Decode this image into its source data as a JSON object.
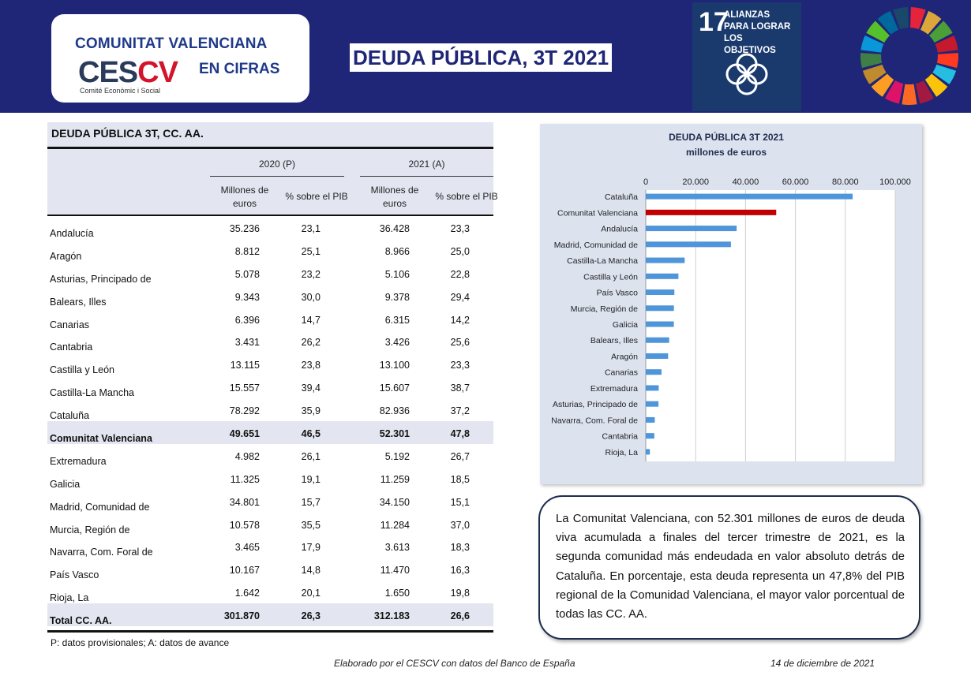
{
  "header": {
    "brand_line1": "COMUNITAT VALENCIANA",
    "brand_line2": "EN CIFRAS",
    "logo_ces": "CES",
    "logo_cv": "CV",
    "logo_subtitle": "Comité Econòmic i Social",
    "title": "DEUDA PÚBLICA, 3T 2021",
    "sdg_number": "17",
    "sdg_text": "ALIANZAS PARA LOGRAR LOS OBJETIVOS",
    "colors": {
      "banner": "#1f2677",
      "logo_red": "#d3142b"
    }
  },
  "table": {
    "title": "DEUDA PÚBLICA  3T, CC. AA.",
    "years": [
      "2020 (P)",
      "2021 (A)"
    ],
    "col_headers": [
      "Millones de euros",
      "% sobre el PIB",
      "Millones de euros",
      "% sobre el PIB"
    ],
    "rows": [
      {
        "name": "Andalucía",
        "v": [
          "35.236",
          "23,1",
          "36.428",
          "23,3"
        ]
      },
      {
        "name": "Aragón",
        "v": [
          "8.812",
          "25,1",
          "8.966",
          "25,0"
        ]
      },
      {
        "name": "Asturias, Principado de",
        "v": [
          "5.078",
          "23,2",
          "5.106",
          "22,8"
        ]
      },
      {
        "name": "Balears, Illes",
        "v": [
          "9.343",
          "30,0",
          "9.378",
          "29,4"
        ]
      },
      {
        "name": "Canarias",
        "v": [
          "6.396",
          "14,7",
          "6.315",
          "14,2"
        ]
      },
      {
        "name": "Cantabria",
        "v": [
          "3.431",
          "26,2",
          "3.426",
          "25,6"
        ]
      },
      {
        "name": "Castilla y León",
        "v": [
          "13.115",
          "23,8",
          "13.100",
          "23,3"
        ]
      },
      {
        "name": "Castilla-La Mancha",
        "v": [
          "15.557",
          "39,4",
          "15.607",
          "38,7"
        ]
      },
      {
        "name": "Cataluña",
        "v": [
          "78.292",
          "35,9",
          "82.936",
          "37,2"
        ]
      },
      {
        "name": "Comunitat Valenciana",
        "v": [
          "49.651",
          "46,5",
          "52.301",
          "47,8"
        ],
        "highlight": true
      },
      {
        "name": "Extremadura",
        "v": [
          "4.982",
          "26,1",
          "5.192",
          "26,7"
        ]
      },
      {
        "name": "Galicia",
        "v": [
          "11.325",
          "19,1",
          "11.259",
          "18,5"
        ]
      },
      {
        "name": "Madrid, Comunidad de",
        "v": [
          "34.801",
          "15,7",
          "34.150",
          "15,1"
        ]
      },
      {
        "name": "Murcia, Región de",
        "v": [
          "10.578",
          "35,5",
          "11.284",
          "37,0"
        ]
      },
      {
        "name": "Navarra, Com. Foral de",
        "v": [
          "3.465",
          "17,9",
          "3.613",
          "18,3"
        ]
      },
      {
        "name": "País Vasco",
        "v": [
          "10.167",
          "14,8",
          "11.470",
          "16,3"
        ]
      },
      {
        "name": "Rioja, La",
        "v": [
          "1.642",
          "20,1",
          "1.650",
          "19,8"
        ]
      },
      {
        "name": "Total CC. AA.",
        "v": [
          "301.870",
          "26,3",
          "312.183",
          "26,6"
        ],
        "highlight": true
      }
    ],
    "footnote": "P: datos provisionales; A: datos de avance"
  },
  "chart_data": {
    "type": "bar",
    "orientation": "horizontal",
    "title": "DEUDA PÚBLICA 3T 2021",
    "subtitle": "millones de euros",
    "categories": [
      "Cataluña",
      "Comunitat Valenciana",
      "Andalucía",
      "Madrid, Comunidad de",
      "Castilla-La Mancha",
      "Castilla y León",
      "País Vasco",
      "Murcia, Región de",
      "Galicia",
      "Balears, Illes",
      "Aragón",
      "Canarias",
      "Extremadura",
      "Asturias, Principado de",
      "Navarra, Com. Foral de",
      "Cantabria",
      "Rioja, La"
    ],
    "values": [
      82936,
      52301,
      36428,
      34150,
      15607,
      13100,
      11470,
      11284,
      11259,
      9378,
      8966,
      6315,
      5192,
      5106,
      3613,
      3426,
      1650
    ],
    "highlight_index": 1,
    "xlim": [
      0,
      100000
    ],
    "ticks": [
      0,
      20000,
      40000,
      60000,
      80000,
      100000
    ],
    "tick_labels": [
      "0",
      "20.000",
      "40.000",
      "60.000",
      "80.000",
      "100.000"
    ],
    "axis_position": "top",
    "grid": true,
    "colors": {
      "bar": "#4f95d9",
      "highlight": "#c00000",
      "background": "#dde2ef"
    }
  },
  "comment": "La Comunitat Valenciana, con 52.301 millones de euros de deuda viva acumulada a finales del tercer trimestre de 2021, es la segunda comunidad más endeudada en valor absoluto detrás de Cataluña. En porcentaje, esta deuda representa un 47,8% del PIB regional de la Comunidad Valenciana, el mayor valor porcentual de todas las CC. AA.",
  "footer": {
    "credits": "Elaborado por el CESCV con datos del Banco de España",
    "date": "14 de diciembre de 2021"
  }
}
